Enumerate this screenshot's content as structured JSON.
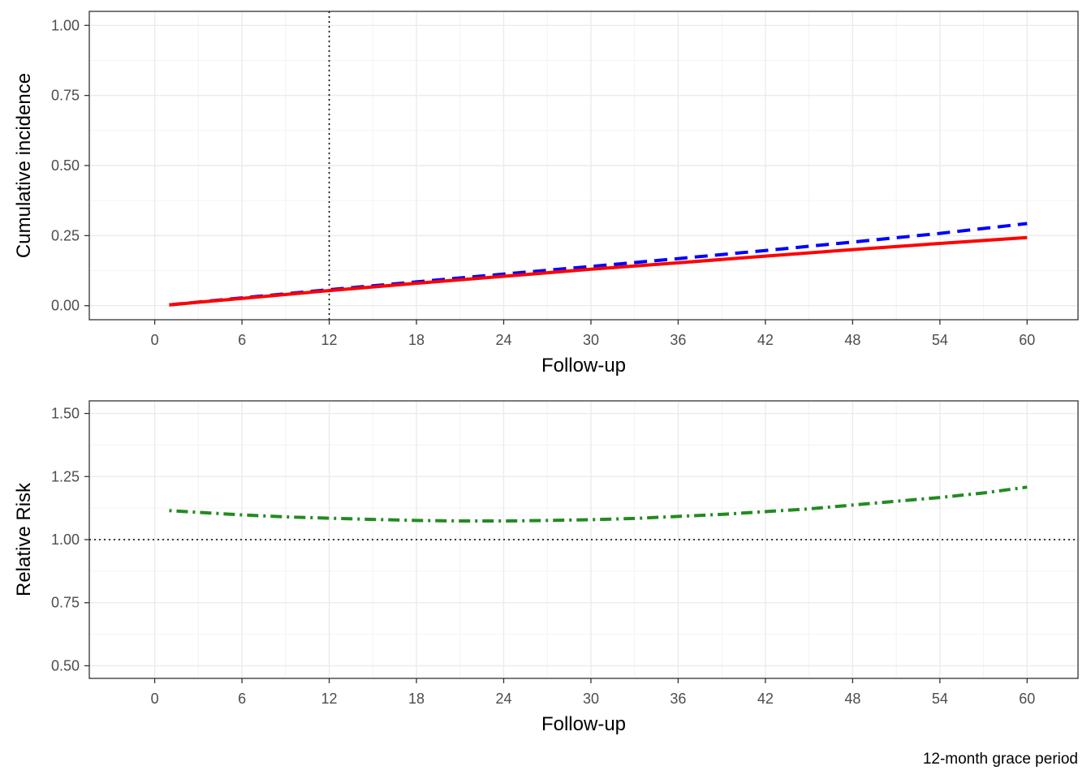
{
  "caption": "12-month grace period",
  "colors": {
    "grid_major": "#ebebeb",
    "grid_minor": "#f3f3f3",
    "panel_border": "#333333",
    "tick_label": "#4d4d4d"
  },
  "chart_data": [
    {
      "type": "line",
      "xlabel": "Follow-up",
      "ylabel": "Cumulative incidence",
      "xlim": [
        -4.5,
        63.5
      ],
      "ylim": [
        -0.05,
        1.05
      ],
      "xticks": [
        0,
        6,
        12,
        18,
        24,
        30,
        36,
        42,
        48,
        54,
        60
      ],
      "yticks": [
        0.0,
        0.25,
        0.5,
        0.75,
        1.0
      ],
      "ytick_labels": [
        "0.00",
        "0.25",
        "0.50",
        "0.75",
        "1.00"
      ],
      "grid": true,
      "reference_lines": [
        {
          "orientation": "vertical",
          "value": 12,
          "style": "dotted",
          "color": "#000000"
        }
      ],
      "series": [
        {
          "color": "#0000ff",
          "line_style": "dashed",
          "x": [
            1,
            6,
            12,
            18,
            24,
            30,
            36,
            42,
            48,
            54,
            60
          ],
          "values": [
            0.003,
            0.028,
            0.057,
            0.085,
            0.113,
            0.14,
            0.168,
            0.197,
            0.227,
            0.258,
            0.293
          ]
        },
        {
          "color": "#ff0000",
          "line_style": "solid",
          "x": [
            1,
            6,
            12,
            18,
            24,
            30,
            36,
            42,
            48,
            54,
            60
          ],
          "values": [
            0.003,
            0.026,
            0.054,
            0.08,
            0.105,
            0.13,
            0.153,
            0.177,
            0.2,
            0.222,
            0.243
          ]
        }
      ]
    },
    {
      "type": "line",
      "xlabel": "Follow-up",
      "ylabel": "Relative Risk",
      "xlim": [
        -4.5,
        63.5
      ],
      "ylim": [
        0.45,
        1.55
      ],
      "xticks": [
        0,
        6,
        12,
        18,
        24,
        30,
        36,
        42,
        48,
        54,
        60
      ],
      "yticks": [
        0.5,
        0.75,
        1.0,
        1.25,
        1.5
      ],
      "ytick_labels": [
        "0.50",
        "0.75",
        "1.00",
        "1.25",
        "1.50"
      ],
      "grid": true,
      "reference_lines": [
        {
          "orientation": "horizontal",
          "value": 1.0,
          "style": "dotted",
          "color": "#000000"
        }
      ],
      "series": [
        {
          "color": "#228b22",
          "line_style": "dotdash",
          "x": [
            1,
            3,
            6,
            9,
            12,
            15,
            18,
            21,
            24,
            27,
            30,
            33,
            36,
            39,
            42,
            45,
            48,
            51,
            54,
            57,
            60
          ],
          "values": [
            1.115,
            1.108,
            1.098,
            1.09,
            1.085,
            1.08,
            1.076,
            1.074,
            1.074,
            1.076,
            1.079,
            1.084,
            1.092,
            1.1,
            1.111,
            1.122,
            1.137,
            1.152,
            1.167,
            1.185,
            1.208
          ]
        }
      ]
    }
  ]
}
